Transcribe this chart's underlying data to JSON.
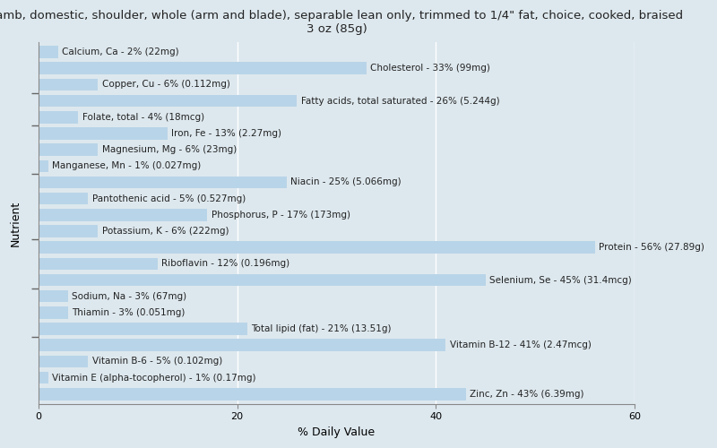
{
  "title": "Lamb, domestic, shoulder, whole (arm and blade), separable lean only, trimmed to 1/4\" fat, choice, cooked, braised\n3 oz (85g)",
  "xlabel": "% Daily Value",
  "ylabel": "Nutrient",
  "xlim": [
    0,
    60
  ],
  "xticks": [
    0,
    20,
    40,
    60
  ],
  "background_color": "#dde8ee",
  "plot_bg_color": "#dde8ee",
  "bar_color": "#b8d4e8",
  "bar_edge_color": "#b8d4e8",
  "text_color": "#222222",
  "grid_color": "#ffffff",
  "label_fontsize": 7.5,
  "title_fontsize": 9.5,
  "nutrients": [
    {
      "label": "Calcium, Ca - 2% (22mg)",
      "value": 2
    },
    {
      "label": "Cholesterol - 33% (99mg)",
      "value": 33
    },
    {
      "label": "Copper, Cu - 6% (0.112mg)",
      "value": 6
    },
    {
      "label": "Fatty acids, total saturated - 26% (5.244g)",
      "value": 26
    },
    {
      "label": "Folate, total - 4% (18mcg)",
      "value": 4
    },
    {
      "label": "Iron, Fe - 13% (2.27mg)",
      "value": 13
    },
    {
      "label": "Magnesium, Mg - 6% (23mg)",
      "value": 6
    },
    {
      "label": "Manganese, Mn - 1% (0.027mg)",
      "value": 1
    },
    {
      "label": "Niacin - 25% (5.066mg)",
      "value": 25
    },
    {
      "label": "Pantothenic acid - 5% (0.527mg)",
      "value": 5
    },
    {
      "label": "Phosphorus, P - 17% (173mg)",
      "value": 17
    },
    {
      "label": "Potassium, K - 6% (222mg)",
      "value": 6
    },
    {
      "label": "Protein - 56% (27.89g)",
      "value": 56
    },
    {
      "label": "Riboflavin - 12% (0.196mg)",
      "value": 12
    },
    {
      "label": "Selenium, Se - 45% (31.4mcg)",
      "value": 45
    },
    {
      "label": "Sodium, Na - 3% (67mg)",
      "value": 3
    },
    {
      "label": "Thiamin - 3% (0.051mg)",
      "value": 3
    },
    {
      "label": "Total lipid (fat) - 21% (13.51g)",
      "value": 21
    },
    {
      "label": "Vitamin B-12 - 41% (2.47mcg)",
      "value": 41
    },
    {
      "label": "Vitamin B-6 - 5% (0.102mg)",
      "value": 5
    },
    {
      "label": "Vitamin E (alpha-tocopherol) - 1% (0.17mg)",
      "value": 1
    },
    {
      "label": "Zinc, Zn - 43% (6.39mg)",
      "value": 43
    }
  ],
  "tick_groups": [
    0,
    2,
    4,
    7,
    11,
    14,
    17,
    21
  ],
  "figsize": [
    8.0,
    5.0
  ],
  "dpi": 100
}
